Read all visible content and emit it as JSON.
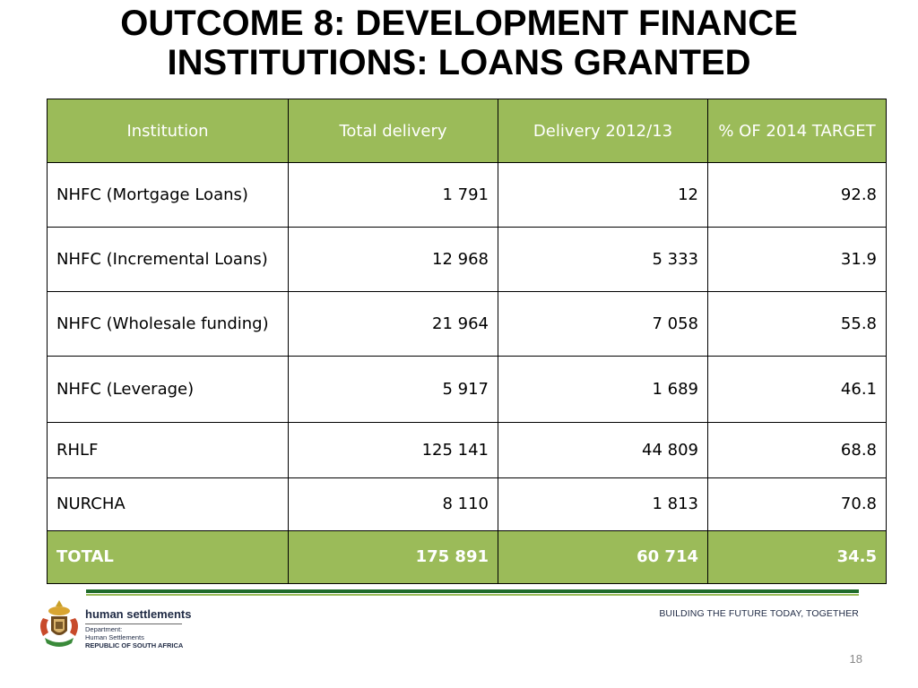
{
  "slide": {
    "title_line1": "OUTCOME 8: DEVELOPMENT FINANCE",
    "title_line2": "INSTITUTIONS: LOANS GRANTED",
    "page_number": "18"
  },
  "table": {
    "headers": [
      "Institution",
      "Total delivery",
      "Delivery 2012/13",
      "% OF 2014 TARGET"
    ],
    "rows": [
      [
        "NHFC (Mortgage Loans)",
        "1 791",
        "12",
        "92.8"
      ],
      [
        "NHFC (Incremental Loans)",
        "12 968",
        "5 333",
        "31.9"
      ],
      [
        "NHFC (Wholesale funding)",
        "21 964",
        "7 058",
        "55.8"
      ],
      [
        "NHFC (Leverage)",
        "5 917",
        "1 689",
        "46.1"
      ],
      [
        "RHLF",
        "125 141",
        "44 809",
        "68.8"
      ],
      [
        "NURCHA",
        "8 110",
        "1 813",
        "70.8"
      ]
    ],
    "total": [
      "TOTAL",
      "175 891",
      "60 714",
      "34.5"
    ]
  },
  "footer": {
    "org_name": "human settlements",
    "dept_line1": "Department:",
    "dept_line2": "Human Settlements",
    "dept_line3": "REPUBLIC OF SOUTH AFRICA",
    "slogan": "BUILDING THE FUTURE TODAY, TOGETHER",
    "crest_icon": "coat-of-arms-icon"
  },
  "colors": {
    "header_green": "#9bbb59",
    "rule_dark_green": "#1f6b2a"
  }
}
